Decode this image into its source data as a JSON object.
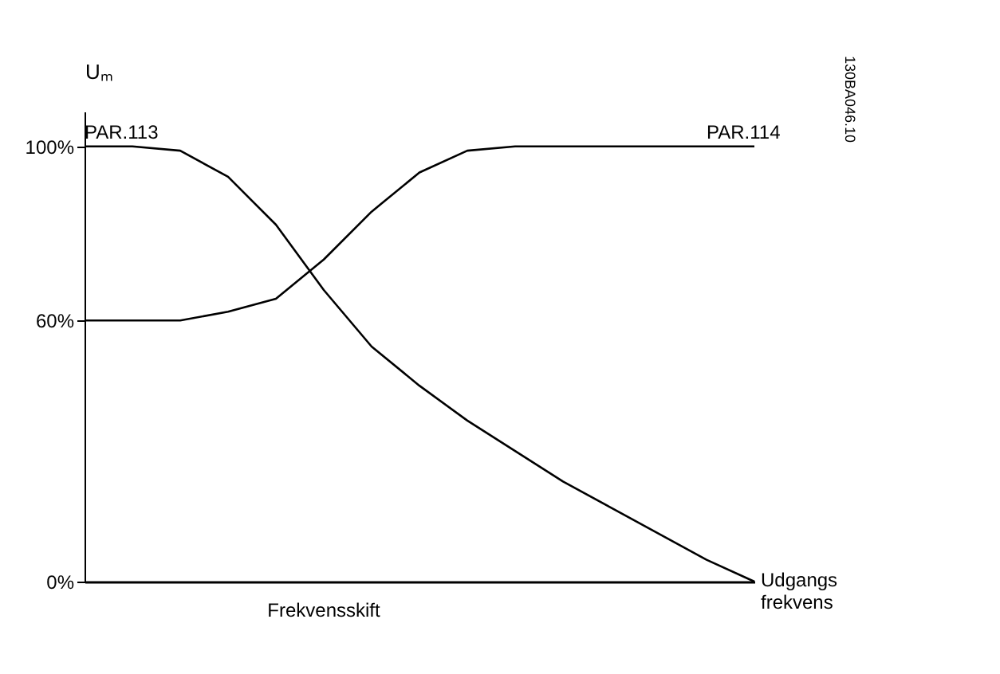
{
  "chart_data": {
    "type": "line",
    "ylabel": "Uₘ",
    "xlabel": "Udgangs frekvens",
    "categories": [
      null,
      null,
      null,
      null,
      null,
      null,
      null,
      null,
      null,
      null,
      null,
      null,
      null,
      null,
      null
    ],
    "series": [
      {
        "color": "#000000",
        "values": [
          100,
          100,
          99,
          93,
          82,
          67,
          54,
          45,
          37,
          30,
          23,
          17,
          11,
          5,
          0
        ]
      },
      {
        "color": "#000000",
        "values": [
          60,
          60,
          60,
          62,
          65,
          74,
          85,
          94,
          99,
          100,
          100,
          100,
          100,
          100,
          100
        ]
      }
    ],
    "ylim": [
      0,
      108
    ],
    "yticks": [
      {
        "value": 0,
        "label": "0%"
      },
      {
        "value": 60,
        "label": "60%"
      },
      {
        "value": 100,
        "label": "100%"
      }
    ],
    "grid": false,
    "legend": false,
    "marker": "none",
    "line_style": "solid",
    "annotations": [
      "PAR.113",
      "PAR.114",
      "Frekvensskift",
      "130BA046.10"
    ]
  }
}
